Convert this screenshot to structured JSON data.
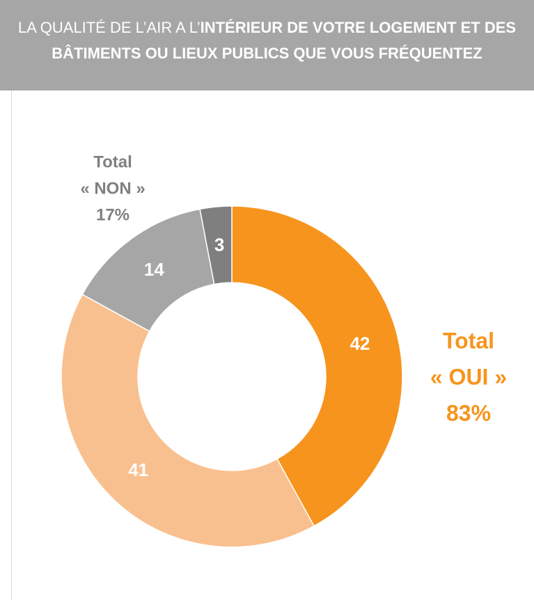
{
  "chart_data": {
    "type": "donut",
    "title": {
      "regular": "LA QUALITÉ DE L’AIR A L’",
      "bold": "INTÉRIEUR DE VOTRE LOGEMENT ET DES BÂTIMENTS OU LIEUX PUBLICS QUE VOUS FRÉQUENTEZ"
    },
    "values": [
      42,
      41,
      14,
      3
    ],
    "colors": [
      "#F7941D",
      "#F9C08F",
      "#A6A6A6",
      "#7F7F7F"
    ],
    "annotations": [
      {
        "text": [
          "Total",
          "« OUI »",
          "83%"
        ],
        "color": "#F7941D"
      },
      {
        "text": [
          "Total",
          "« NON »",
          "17%"
        ],
        "color": "#808080"
      }
    ]
  }
}
